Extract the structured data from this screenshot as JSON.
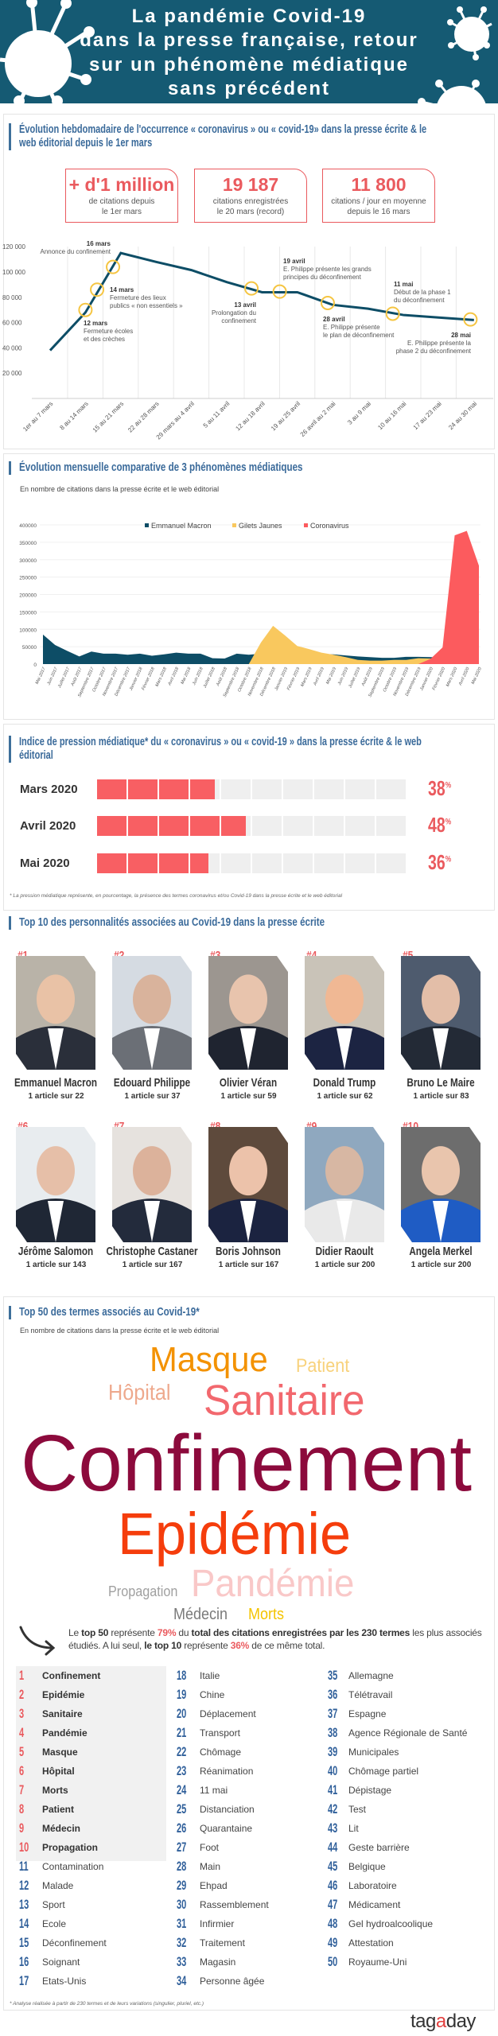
{
  "header": {
    "title_lines": [
      "La pandémie Covid-19",
      "dans la presse française, retour",
      "sur un phénomène médiatique",
      "sans précédent"
    ],
    "bg_color": "#155a73"
  },
  "section1": {
    "title_lines": [
      "Évolution hebdomadaire de l'occurrence « coronavirus » ou « covid-19» dans la presse écrite & le",
      "web éditorial depuis le 1er mars"
    ],
    "stats": [
      {
        "value": "+ d'1 million",
        "line1": "de citations depuis",
        "line2": "le 1er mars"
      },
      {
        "value": "19 187",
        "line1": "citations enregistrées",
        "line2": "le 20 mars (record)"
      },
      {
        "value": "11 800",
        "line1": "citations / jour en moyenne",
        "line2": "depuis le 16 mars"
      }
    ]
  },
  "section2": {
    "title": "Évolution mensuelle comparative de 3 phénomènes médiatiques",
    "subtitle": "En nombre de citations dans la presse écrite et le web éditorial"
  },
  "section3": {
    "title_lines": [
      "Indice de pression médiatique* du « coronavirus » ou « covid-19  » dans la presse écrite & le web",
      "éditorial"
    ],
    "rows": [
      {
        "label": "Mars 2020",
        "percent": 38
      },
      {
        "label": "Avril 2020",
        "percent": 48
      },
      {
        "label": "Mai 2020",
        "percent": 36
      }
    ],
    "percent_sign": "%",
    "footnote": "* La pression médiatique représente, en pourcentage, la présence des termes coronavirus et/ou Covid-19 dans la presse écrite et le web éditorial"
  },
  "section4": {
    "title": "Top 10 des personnalités associées au Covid-19 dans la presse écrite",
    "people": [
      {
        "rank": "#1",
        "name": "Emmanuel Macron",
        "count": "1 article sur 22"
      },
      {
        "rank": "#2",
        "name": "Edouard Philippe",
        "count": "1 article sur 37"
      },
      {
        "rank": "#3",
        "name": "Olivier Véran",
        "count": "1 article sur 59"
      },
      {
        "rank": "#4",
        "name": "Donald Trump",
        "count": "1 article sur 62"
      },
      {
        "rank": "#5",
        "name": "Bruno Le Maire",
        "count": "1 article sur 83"
      },
      {
        "rank": "#6",
        "name": "Jérôme Salomon",
        "count": "1 article sur 143"
      },
      {
        "rank": "#7",
        "name": "Christophe Castaner",
        "count": "1 article sur 167"
      },
      {
        "rank": "#8",
        "name": "Boris Johnson",
        "count": "1 article sur 167"
      },
      {
        "rank": "#9",
        "name": "Didier Raoult",
        "count": "1 article sur 200"
      },
      {
        "rank": "#10",
        "name": "Angela Merkel",
        "count": "1 article sur 200"
      }
    ]
  },
  "section5": {
    "title": "Top 50 des termes associés au Covid-19*",
    "subtitle": "En nombre de citations dans la presse écrite et le web éditorial",
    "cloud": [
      {
        "word": "Masque",
        "color": "#f39200"
      },
      {
        "word": "Patient",
        "color": "#f8d27c"
      },
      {
        "word": "Hôpital",
        "color": "#eea98d"
      },
      {
        "word": "Sanitaire",
        "color": "#f2686e"
      },
      {
        "word": "Confinement",
        "color": "#8c0a3c"
      },
      {
        "word": "Epidémie",
        "color": "#f53d0c"
      },
      {
        "word": "Pandémie",
        "color": "#f9c8c8"
      },
      {
        "word": "Propagation",
        "color": "#a0a0a0"
      },
      {
        "word": "Médecin",
        "color": "#7a7a7a"
      },
      {
        "word": "Morts",
        "color": "#f4c400"
      }
    ],
    "summary": [
      "Le ",
      "top 50",
      " représente ",
      "79%",
      " du ",
      "total des citations enregistrées par les 230 termes",
      " les plus associés étudiés. A lui seul, ",
      "le top 10",
      " représente ",
      "36%",
      " de ce même total."
    ],
    "terms": [
      "Confinement",
      "Epidémie",
      "Sanitaire",
      "Pandémie",
      "Masque",
      "Hôpital",
      "Morts",
      "Patient",
      "Médecin",
      "Propagation",
      "Contamination",
      "Malade",
      "Sport",
      "Ecole",
      "Déconfinement",
      "Soignant",
      "Etats-Unis",
      "Italie",
      "Chine",
      "Déplacement",
      "Transport",
      "Chômage",
      "Réanimation",
      "11 mai",
      "Distanciation",
      "Quarantaine",
      "Foot",
      "Main",
      "Ehpad",
      "Rassemblement",
      "Infirmier",
      "Traitement",
      "Magasin",
      "Personne âgée",
      "Allemagne",
      "Télétravail",
      "Espagne",
      "Agence Régionale de Santé",
      "Municipales",
      "Chômage partiel",
      "Dépistage",
      "Test",
      "Lit",
      "Geste barrière",
      "Belgique",
      "Laboratoire",
      "Médicament",
      "Gel hydroalcoolique",
      "Attestation",
      "Royaume-Uni"
    ],
    "footnote": "* Analyse réalisée à partir de 230 termes et de leurs variations (singulier, pluriel, etc.)"
  },
  "logo": {
    "text": [
      "tag",
      "a",
      "day"
    ]
  },
  "chart_data": [
    {
      "type": "line",
      "title": "Évolution hebdomadaire de l'occurrence « coronavirus » ou « covid-19»",
      "ylim": [
        0,
        120000
      ],
      "yticks": [
        "20 000",
        "40 000",
        "60 000",
        "80 000",
        "100 000",
        "120 000"
      ],
      "ytick_values": [
        20000,
        40000,
        60000,
        80000,
        100000,
        120000
      ],
      "categories": [
        "1er au 7 mars",
        "8 au 14 mars",
        "15 au 21 mars",
        "22 au 28 mars",
        "29 mars au 4 avril",
        "5 au 11 avril",
        "12 au 18 avril",
        "19 au 25 avril",
        "26 avril au 2 mai",
        "3 au 9 mai",
        "10 au 16 mai",
        "17 au 23 mai",
        "24 au 30 mai"
      ],
      "values": [
        38000,
        68000,
        115000,
        108000,
        101500,
        92000,
        84000,
        84000,
        74000,
        71000,
        66000,
        64000,
        62000
      ],
      "line_color": "#0d4d66",
      "marker_color": "#f5c542",
      "annotations": [
        {
          "date": "16 mars",
          "lines": [
            "Annonce du confinement"
          ],
          "at": 1.78,
          "value": 104000
        },
        {
          "date": "14 mars",
          "lines": [
            "Fermeture des lieux",
            "publics « non essentiels »"
          ],
          "at": 1.33,
          "value": 86000
        },
        {
          "date": "12 mars",
          "lines": [
            "Fermeture écoles",
            "et des crèches"
          ],
          "at": 1.0,
          "value": 70000
        },
        {
          "date": "13 avril",
          "lines": [
            "Prolongation du",
            "confinement"
          ],
          "at": 5.7,
          "value": 87000
        },
        {
          "date": "19 avril",
          "lines": [
            "E. Philippe présente les grands",
            "principes du déconfinement"
          ],
          "at": 6.5,
          "value": 84500
        },
        {
          "date": "28 avril",
          "lines": [
            "E. Philippe présente",
            "le plan de déconfinement"
          ],
          "at": 7.86,
          "value": 75500
        },
        {
          "date": "11 mai",
          "lines": [
            "Début de la phase 1",
            "du déconfinement"
          ],
          "at": 9.7,
          "value": 67000
        },
        {
          "date": "28 mai",
          "lines": [
            "E. Philippe présente la",
            "phase 2 du déconfinement"
          ],
          "at": 11.9,
          "value": 62500
        }
      ]
    },
    {
      "type": "area",
      "title": "Évolution mensuelle comparative de 3 phénomènes médiatiques",
      "ylim": [
        0,
        400000
      ],
      "yticks": [
        "0",
        "50000",
        "100000",
        "150000",
        "200000",
        "250000",
        "300000",
        "350000",
        "400000"
      ],
      "ytick_values": [
        0,
        50000,
        100000,
        150000,
        200000,
        250000,
        300000,
        350000,
        400000
      ],
      "categories": [
        "Mai 2017",
        "Juin 2017",
        "Juillet 2017",
        "Août 2017",
        "Septembre 2017",
        "Octobre 2017",
        "Novembre 2017",
        "Décembre 2017",
        "Janvier 2018",
        "Février 2018",
        "Mars 2018",
        "Avril 2018",
        "Mai 2018",
        "Juin 2018",
        "Juillet 2018",
        "Août 2018",
        "Septembre 2018",
        "Octobre 2018",
        "Novembre 2018",
        "Décembre 2018",
        "Janvier 2019",
        "Février 2019",
        "Mars 2019",
        "Avril 2019",
        "Mai 2019",
        "Juin 2019",
        "Juillet 2019",
        "Août 2019",
        "Septembre 2019",
        "Octobre 2019",
        "Novembre 2019",
        "Décembre 2019",
        "Janvier 2020",
        "Février 2020",
        "Mars 2020",
        "Avril 2020",
        "Mai 2020"
      ],
      "legend": "top-center",
      "series": [
        {
          "name": "Emmanuel Macron",
          "color": "#0d4d66",
          "values": [
            85000,
            55000,
            38000,
            22000,
            36000,
            30000,
            30000,
            27000,
            30000,
            24000,
            28000,
            33000,
            30000,
            30000,
            17000,
            16000,
            30000,
            27000,
            30000,
            25000,
            25000,
            28000,
            28000,
            28000,
            28000,
            25000,
            22000,
            20000,
            18000,
            18000,
            21000,
            21000,
            20000,
            20000,
            20000,
            15000,
            12000
          ]
        },
        {
          "name": "Gilets Jaunes",
          "color": "#f9c85e",
          "values": [
            0,
            0,
            0,
            0,
            0,
            0,
            0,
            0,
            0,
            0,
            0,
            0,
            0,
            0,
            0,
            0,
            0,
            0,
            62000,
            110000,
            82000,
            52000,
            43000,
            33000,
            27000,
            20000,
            12000,
            10000,
            10000,
            12000,
            12000,
            17000,
            16000,
            14000,
            12000,
            8000,
            6000
          ]
        },
        {
          "name": "Coronavirus",
          "color": "#fc5b5e",
          "values": [
            0,
            0,
            0,
            0,
            0,
            0,
            0,
            0,
            0,
            0,
            0,
            0,
            0,
            0,
            0,
            0,
            0,
            0,
            0,
            0,
            0,
            0,
            0,
            0,
            0,
            0,
            0,
            0,
            0,
            0,
            0,
            0,
            15000,
            48000,
            370000,
            383000,
            283000
          ]
        }
      ]
    }
  ]
}
